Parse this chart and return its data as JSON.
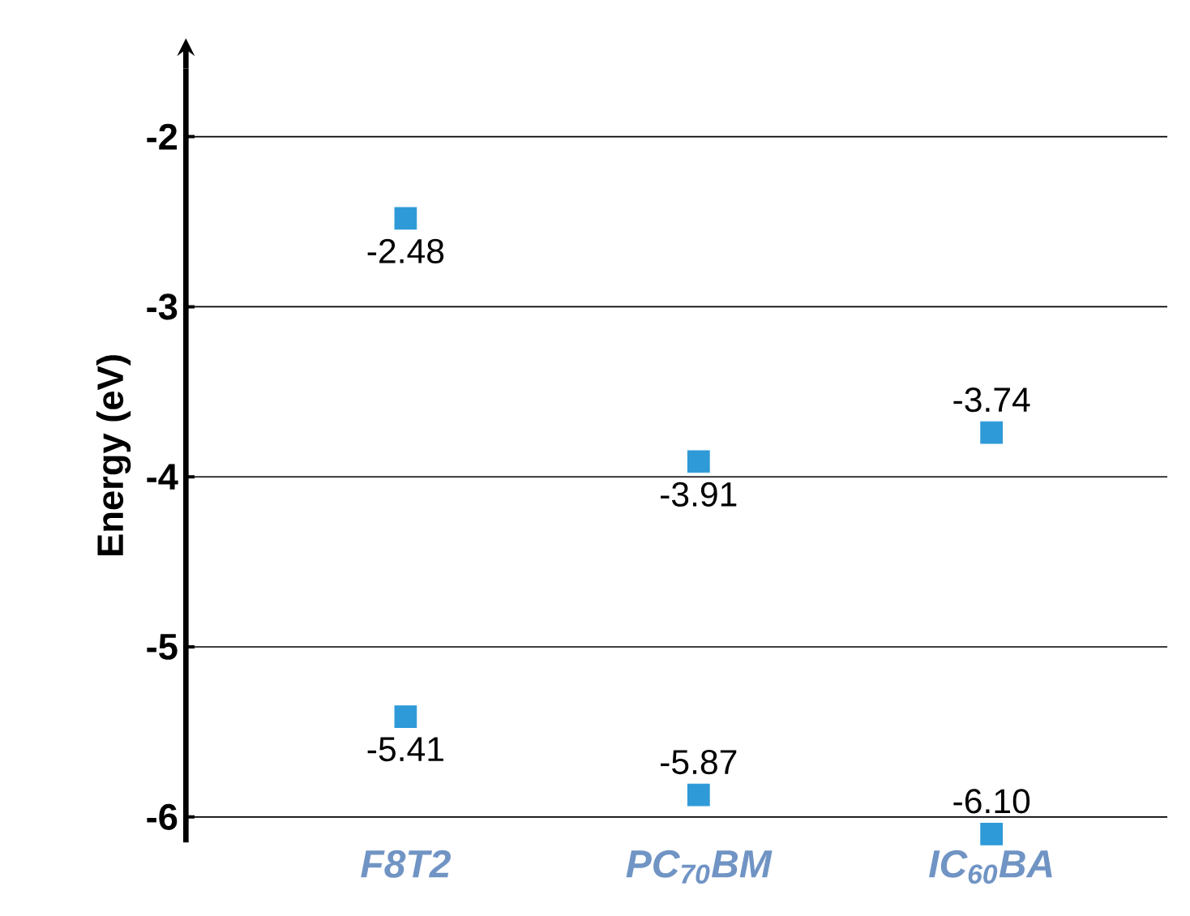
{
  "chart_data": {
    "type": "scatter",
    "ylabel": "Energy (eV)",
    "categories": [
      "F8T2",
      "PC$_{70}$BM",
      "IC$_{60}$BA"
    ],
    "ylim": [
      -6.15,
      -1.6
    ],
    "yticks": [
      -2,
      -3,
      -4,
      -5,
      -6
    ],
    "grid": "y",
    "marker": "square",
    "series": [
      {
        "color": "#2e9ad8",
        "values": [
          -2.48,
          -3.91,
          -3.74
        ],
        "value_labels": [
          "-2.48",
          "-3.91",
          "-3.74"
        ]
      },
      {
        "color": "#2e9ad8",
        "values": [
          -5.41,
          -5.87,
          -6.1
        ],
        "value_labels": [
          "-5.41",
          "-5.87",
          "-6.10"
        ]
      }
    ]
  }
}
